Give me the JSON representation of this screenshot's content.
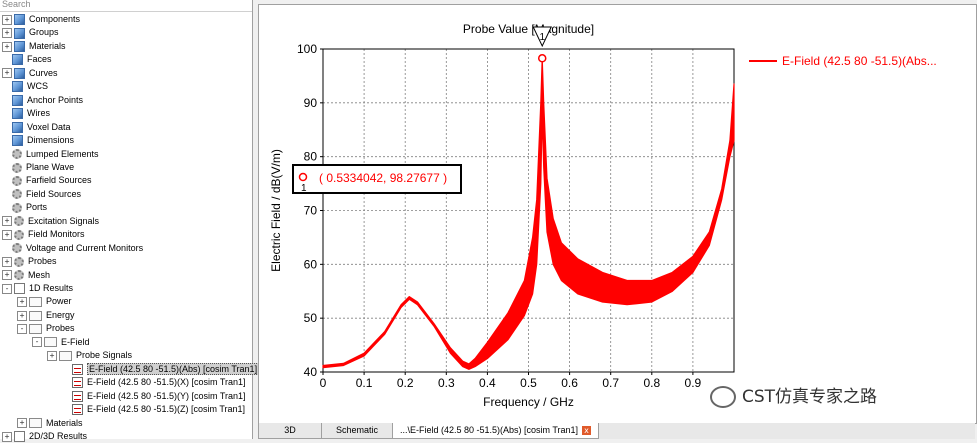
{
  "tree": {
    "search_placeholder": "Search",
    "items": [
      {
        "label": "Components",
        "icon": "cube",
        "exp": "+",
        "indent": 0,
        "selected": false
      },
      {
        "label": "Groups",
        "icon": "cube",
        "exp": "+",
        "indent": 0,
        "selected": false
      },
      {
        "label": "Materials",
        "icon": "cube",
        "exp": "+",
        "indent": 0,
        "selected": false
      },
      {
        "label": "Faces",
        "icon": "cube",
        "exp": "",
        "indent": 0,
        "selected": false
      },
      {
        "label": "Curves",
        "icon": "cube",
        "exp": "+",
        "indent": 0,
        "selected": false
      },
      {
        "label": "WCS",
        "icon": "cube",
        "exp": "",
        "indent": 0,
        "selected": false
      },
      {
        "label": "Anchor Points",
        "icon": "cube",
        "exp": "",
        "indent": 0,
        "selected": false
      },
      {
        "label": "Wires",
        "icon": "cube",
        "exp": "",
        "indent": 0,
        "selected": false
      },
      {
        "label": "Voxel Data",
        "icon": "cube",
        "exp": "",
        "indent": 0,
        "selected": false
      },
      {
        "label": "Dimensions",
        "icon": "cube",
        "exp": "",
        "indent": 0,
        "selected": false
      },
      {
        "label": "Lumped Elements",
        "icon": "gear",
        "exp": "",
        "indent": 0,
        "selected": false
      },
      {
        "label": "Plane Wave",
        "icon": "gear",
        "exp": "",
        "indent": 0,
        "selected": false
      },
      {
        "label": "Farfield Sources",
        "icon": "gear",
        "exp": "",
        "indent": 0,
        "selected": false
      },
      {
        "label": "Field Sources",
        "icon": "gear",
        "exp": "",
        "indent": 0,
        "selected": false
      },
      {
        "label": "Ports",
        "icon": "gear",
        "exp": "",
        "indent": 0,
        "selected": false
      },
      {
        "label": "Excitation Signals",
        "icon": "gear",
        "exp": "+",
        "indent": 0,
        "selected": false
      },
      {
        "label": "Field Monitors",
        "icon": "gear",
        "exp": "+",
        "indent": 0,
        "selected": false
      },
      {
        "label": "Voltage and Current Monitors",
        "icon": "gear",
        "exp": "",
        "indent": 0,
        "selected": false
      },
      {
        "label": "Probes",
        "icon": "gear",
        "exp": "+",
        "indent": 0,
        "selected": false
      },
      {
        "label": "Mesh",
        "icon": "gear",
        "exp": "+",
        "indent": 0,
        "selected": false
      },
      {
        "label": "1D Results",
        "icon": "res",
        "exp": "-",
        "indent": 0,
        "selected": false
      },
      {
        "label": "Power",
        "icon": "folder",
        "exp": "+",
        "indent": 1,
        "selected": false
      },
      {
        "label": "Energy",
        "icon": "folder",
        "exp": "+",
        "indent": 1,
        "selected": false
      },
      {
        "label": "Probes",
        "icon": "folder",
        "exp": "-",
        "indent": 1,
        "selected": false
      },
      {
        "label": "E-Field",
        "icon": "folder",
        "exp": "-",
        "indent": 2,
        "selected": false
      },
      {
        "label": "Probe Signals",
        "icon": "folder",
        "exp": "+",
        "indent": 3,
        "selected": false
      },
      {
        "label": "E-Field (42.5 80 -51.5)(Abs) [cosim Tran1]",
        "icon": "sig",
        "exp": "",
        "indent": 4,
        "selected": true
      },
      {
        "label": "E-Field (42.5 80 -51.5)(X) [cosim Tran1]",
        "icon": "sig",
        "exp": "",
        "indent": 4,
        "selected": false
      },
      {
        "label": "E-Field (42.5 80 -51.5)(Y) [cosim Tran1]",
        "icon": "sig",
        "exp": "",
        "indent": 4,
        "selected": false
      },
      {
        "label": "E-Field (42.5 80 -51.5)(Z) [cosim Tran1]",
        "icon": "sig",
        "exp": "",
        "indent": 4,
        "selected": false
      },
      {
        "label": "Materials",
        "icon": "folder",
        "exp": "+",
        "indent": 1,
        "selected": false
      },
      {
        "label": "2D/3D Results",
        "icon": "res",
        "exp": "+",
        "indent": 0,
        "selected": false
      }
    ]
  },
  "tabs": {
    "t3d": "3D",
    "schematic": "Schematic",
    "result": "...\\E-Field (42.5 80 -51.5)(Abs) [cosim Tran1]",
    "close_glyph": "x"
  },
  "watermark": "CST仿真专家之路",
  "colors": {
    "series": "#ff0000",
    "grid": "#808080",
    "accent_close": "#e05a2a"
  },
  "chart_data": {
    "type": "line",
    "title": "Probe Value [Magnitude]",
    "xlabel": "Frequency / GHz",
    "ylabel": "Electric Field / dB(V/m)",
    "xlim": [
      0,
      1
    ],
    "ylim": [
      40,
      100
    ],
    "xticks": [
      "0",
      "0.1",
      "0.2",
      "0.3",
      "0.4",
      "0.5",
      "0.6",
      "0.7",
      "0.8",
      "0.9"
    ],
    "yticks": [
      "40",
      "50",
      "60",
      "70",
      "80",
      "90",
      "100"
    ],
    "grid": true,
    "legend_position": "right",
    "series": [
      {
        "name": "E-Field (42.5 80 -51.5)(Abs...",
        "color": "#ff0000",
        "upper": [
          [
            0,
            41.2
          ],
          [
            0.05,
            41.6
          ],
          [
            0.1,
            43.5
          ],
          [
            0.15,
            47.5
          ],
          [
            0.19,
            52.5
          ],
          [
            0.21,
            54.0
          ],
          [
            0.23,
            53.0
          ],
          [
            0.27,
            49.0
          ],
          [
            0.31,
            44.5
          ],
          [
            0.34,
            42.0
          ],
          [
            0.355,
            41.5
          ],
          [
            0.37,
            42.5
          ],
          [
            0.4,
            45.5
          ],
          [
            0.45,
            51.0
          ],
          [
            0.49,
            57.0
          ],
          [
            0.51,
            65.0
          ],
          [
            0.52,
            72.0
          ],
          [
            0.53,
            90.0
          ],
          [
            0.5334,
            98.3
          ],
          [
            0.537,
            90.0
          ],
          [
            0.545,
            76.0
          ],
          [
            0.56,
            68.5
          ],
          [
            0.58,
            64.0
          ],
          [
            0.62,
            61.0
          ],
          [
            0.68,
            58.5
          ],
          [
            0.74,
            57.0
          ],
          [
            0.8,
            57.0
          ],
          [
            0.85,
            58.5
          ],
          [
            0.9,
            61.5
          ],
          [
            0.94,
            66.0
          ],
          [
            0.97,
            74.0
          ],
          [
            0.99,
            83.0
          ],
          [
            1.0,
            93.5
          ]
        ],
        "lower": [
          [
            0,
            40.8
          ],
          [
            0.05,
            41.2
          ],
          [
            0.1,
            43.0
          ],
          [
            0.15,
            47.0
          ],
          [
            0.19,
            52.0
          ],
          [
            0.21,
            53.5
          ],
          [
            0.23,
            52.5
          ],
          [
            0.27,
            48.5
          ],
          [
            0.31,
            43.5
          ],
          [
            0.34,
            41.0
          ],
          [
            0.355,
            40.5
          ],
          [
            0.37,
            41.0
          ],
          [
            0.4,
            42.5
          ],
          [
            0.45,
            46.0
          ],
          [
            0.49,
            50.5
          ],
          [
            0.51,
            54.5
          ],
          [
            0.52,
            60.0
          ],
          [
            0.53,
            75.0
          ],
          [
            0.5334,
            88.0
          ],
          [
            0.537,
            78.0
          ],
          [
            0.545,
            66.0
          ],
          [
            0.56,
            60.0
          ],
          [
            0.58,
            57.0
          ],
          [
            0.62,
            54.5
          ],
          [
            0.68,
            53.0
          ],
          [
            0.74,
            52.5
          ],
          [
            0.8,
            53.0
          ],
          [
            0.85,
            55.0
          ],
          [
            0.9,
            58.5
          ],
          [
            0.94,
            63.5
          ],
          [
            0.97,
            72.0
          ],
          [
            0.99,
            80.0
          ],
          [
            1.0,
            83.0
          ]
        ]
      }
    ],
    "marker": {
      "id": "1",
      "x": 0.5334042,
      "y": 98.27677,
      "readout": "( 0.5334042, 98.27677 )"
    }
  }
}
